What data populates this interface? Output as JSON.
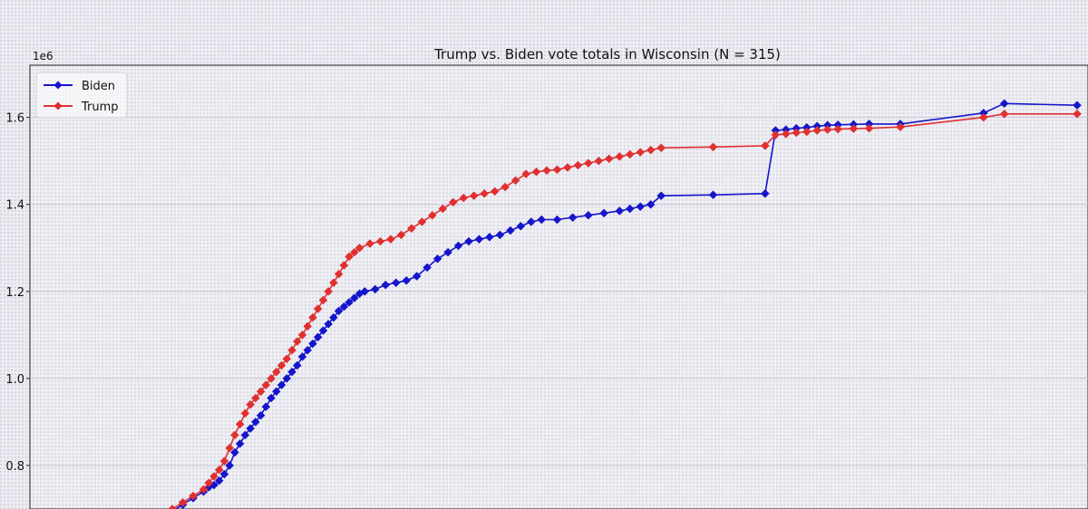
{
  "chart_data": {
    "type": "line",
    "title": "Trump vs. Biden vote totals in Wisconsin (N = 315)",
    "xlabel": "",
    "ylabel": "",
    "y_offset_label": "1e6",
    "yticks": [
      0.8,
      1.0,
      1.2,
      1.4,
      1.6
    ],
    "ytick_labels": [
      "0.8",
      "1.0",
      "1.2",
      "1.4",
      "1.6"
    ],
    "ylim": [
      0.7,
      1.72
    ],
    "xlim": [
      0,
      1
    ],
    "grid": true,
    "legend_position": "top-left",
    "series": [
      {
        "name": "Biden",
        "color": "#1515cc",
        "marker": "diamond",
        "points": [
          [
            0.13,
            0.695
          ],
          [
            0.14,
            0.71
          ],
          [
            0.15,
            0.725
          ],
          [
            0.16,
            0.74
          ],
          [
            0.165,
            0.75
          ],
          [
            0.17,
            0.755
          ],
          [
            0.175,
            0.765
          ],
          [
            0.18,
            0.78
          ],
          [
            0.185,
            0.8
          ],
          [
            0.19,
            0.83
          ],
          [
            0.195,
            0.85
          ],
          [
            0.2,
            0.87
          ],
          [
            0.205,
            0.885
          ],
          [
            0.21,
            0.9
          ],
          [
            0.215,
            0.915
          ],
          [
            0.22,
            0.935
          ],
          [
            0.225,
            0.955
          ],
          [
            0.23,
            0.97
          ],
          [
            0.235,
            0.985
          ],
          [
            0.24,
            1.0
          ],
          [
            0.245,
            1.015
          ],
          [
            0.25,
            1.03
          ],
          [
            0.255,
            1.05
          ],
          [
            0.26,
            1.065
          ],
          [
            0.265,
            1.08
          ],
          [
            0.27,
            1.095
          ],
          [
            0.275,
            1.11
          ],
          [
            0.28,
            1.125
          ],
          [
            0.285,
            1.14
          ],
          [
            0.29,
            1.155
          ],
          [
            0.295,
            1.165
          ],
          [
            0.3,
            1.175
          ],
          [
            0.305,
            1.185
          ],
          [
            0.31,
            1.195
          ],
          [
            0.315,
            1.2
          ],
          [
            0.325,
            1.205
          ],
          [
            0.335,
            1.215
          ],
          [
            0.345,
            1.22
          ],
          [
            0.355,
            1.225
          ],
          [
            0.365,
            1.235
          ],
          [
            0.375,
            1.255
          ],
          [
            0.385,
            1.275
          ],
          [
            0.395,
            1.29
          ],
          [
            0.405,
            1.305
          ],
          [
            0.415,
            1.315
          ],
          [
            0.425,
            1.32
          ],
          [
            0.435,
            1.325
          ],
          [
            0.445,
            1.33
          ],
          [
            0.455,
            1.34
          ],
          [
            0.465,
            1.35
          ],
          [
            0.475,
            1.36
          ],
          [
            0.485,
            1.365
          ],
          [
            0.5,
            1.365
          ],
          [
            0.515,
            1.37
          ],
          [
            0.53,
            1.375
          ],
          [
            0.545,
            1.38
          ],
          [
            0.56,
            1.385
          ],
          [
            0.57,
            1.39
          ],
          [
            0.58,
            1.395
          ],
          [
            0.59,
            1.4
          ],
          [
            0.6,
            1.42
          ],
          [
            0.65,
            1.422
          ],
          [
            0.7,
            1.425
          ],
          [
            0.71,
            1.57
          ],
          [
            0.72,
            1.572
          ],
          [
            0.73,
            1.575
          ],
          [
            0.74,
            1.577
          ],
          [
            0.75,
            1.58
          ],
          [
            0.76,
            1.582
          ],
          [
            0.77,
            1.583
          ],
          [
            0.785,
            1.584
          ],
          [
            0.8,
            1.585
          ],
          [
            0.83,
            1.585
          ],
          [
            0.91,
            1.61
          ],
          [
            0.93,
            1.632
          ],
          [
            1.0,
            1.628
          ]
        ]
      },
      {
        "name": "Trump",
        "color": "#e03030",
        "marker": "diamond",
        "points": [
          [
            0.13,
            0.7
          ],
          [
            0.14,
            0.715
          ],
          [
            0.15,
            0.73
          ],
          [
            0.16,
            0.745
          ],
          [
            0.165,
            0.76
          ],
          [
            0.17,
            0.775
          ],
          [
            0.175,
            0.79
          ],
          [
            0.18,
            0.81
          ],
          [
            0.185,
            0.84
          ],
          [
            0.19,
            0.87
          ],
          [
            0.195,
            0.895
          ],
          [
            0.2,
            0.92
          ],
          [
            0.205,
            0.94
          ],
          [
            0.21,
            0.955
          ],
          [
            0.215,
            0.97
          ],
          [
            0.22,
            0.985
          ],
          [
            0.225,
            1.0
          ],
          [
            0.23,
            1.015
          ],
          [
            0.235,
            1.03
          ],
          [
            0.24,
            1.045
          ],
          [
            0.245,
            1.065
          ],
          [
            0.25,
            1.085
          ],
          [
            0.255,
            1.1
          ],
          [
            0.26,
            1.12
          ],
          [
            0.265,
            1.14
          ],
          [
            0.27,
            1.16
          ],
          [
            0.275,
            1.18
          ],
          [
            0.28,
            1.2
          ],
          [
            0.285,
            1.22
          ],
          [
            0.29,
            1.24
          ],
          [
            0.295,
            1.26
          ],
          [
            0.3,
            1.28
          ],
          [
            0.305,
            1.29
          ],
          [
            0.31,
            1.3
          ],
          [
            0.32,
            1.31
          ],
          [
            0.33,
            1.315
          ],
          [
            0.34,
            1.32
          ],
          [
            0.35,
            1.33
          ],
          [
            0.36,
            1.345
          ],
          [
            0.37,
            1.36
          ],
          [
            0.38,
            1.375
          ],
          [
            0.39,
            1.39
          ],
          [
            0.4,
            1.405
          ],
          [
            0.41,
            1.415
          ],
          [
            0.42,
            1.42
          ],
          [
            0.43,
            1.425
          ],
          [
            0.44,
            1.43
          ],
          [
            0.45,
            1.44
          ],
          [
            0.46,
            1.455
          ],
          [
            0.47,
            1.47
          ],
          [
            0.48,
            1.475
          ],
          [
            0.49,
            1.478
          ],
          [
            0.5,
            1.48
          ],
          [
            0.51,
            1.485
          ],
          [
            0.52,
            1.49
          ],
          [
            0.53,
            1.495
          ],
          [
            0.54,
            1.5
          ],
          [
            0.55,
            1.505
          ],
          [
            0.56,
            1.51
          ],
          [
            0.57,
            1.515
          ],
          [
            0.58,
            1.52
          ],
          [
            0.59,
            1.525
          ],
          [
            0.6,
            1.53
          ],
          [
            0.65,
            1.532
          ],
          [
            0.7,
            1.535
          ],
          [
            0.71,
            1.56
          ],
          [
            0.72,
            1.562
          ],
          [
            0.73,
            1.565
          ],
          [
            0.74,
            1.567
          ],
          [
            0.75,
            1.57
          ],
          [
            0.76,
            1.572
          ],
          [
            0.77,
            1.573
          ],
          [
            0.785,
            1.574
          ],
          [
            0.8,
            1.575
          ],
          [
            0.83,
            1.578
          ],
          [
            0.91,
            1.6
          ],
          [
            0.93,
            1.608
          ],
          [
            1.0,
            1.608
          ]
        ]
      }
    ]
  }
}
